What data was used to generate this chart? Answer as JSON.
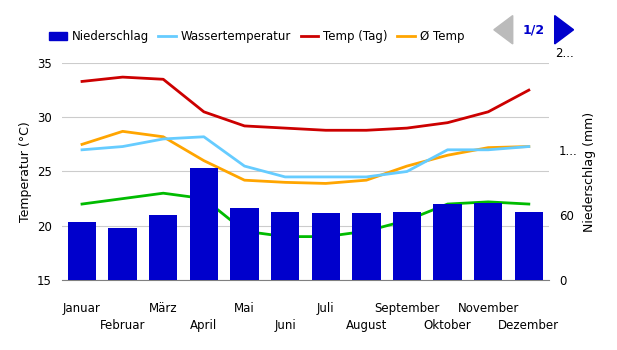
{
  "months_odd": [
    "Januar",
    "März",
    "Mai",
    "Juli",
    "September",
    "November"
  ],
  "months_even": [
    "Februar",
    "April",
    "Juni",
    "August",
    "Oktober",
    "Dezember"
  ],
  "odd_positions": [
    0,
    2,
    4,
    6,
    8,
    10
  ],
  "even_positions": [
    1,
    3,
    5,
    7,
    9,
    11
  ],
  "precipitation_mm": [
    53,
    48,
    60,
    103,
    66,
    63,
    62,
    62,
    63,
    70,
    71,
    63
  ],
  "temp_day": [
    33.3,
    33.7,
    33.5,
    30.5,
    29.2,
    29.0,
    28.8,
    28.8,
    29.0,
    29.5,
    30.5,
    32.5
  ],
  "temp_avg": [
    27.5,
    28.7,
    28.2,
    26.0,
    24.2,
    24.0,
    23.9,
    24.2,
    25.5,
    26.5,
    27.2,
    27.3
  ],
  "water_temp": [
    27.0,
    27.3,
    28.0,
    28.2,
    25.5,
    24.5,
    24.5,
    24.5,
    25.0,
    27.0,
    27.0,
    27.3
  ],
  "min_temp_line": [
    22.0,
    22.5,
    23.0,
    22.5,
    19.5,
    19.0,
    19.0,
    19.5,
    20.5,
    22.0,
    22.2,
    22.0
  ],
  "temp_ylim": [
    15,
    35
  ],
  "precip_ylim": [
    0,
    200
  ],
  "precip_yticks": [
    0,
    60,
    120
  ],
  "precip_yticklabels": [
    "0",
    "60",
    "1..."
  ],
  "temp_yticks": [
    15,
    20,
    25,
    30,
    35
  ],
  "temp_yticklabels": [
    "15",
    "20",
    "25",
    "30",
    "35"
  ],
  "bar_color": "#0000CC",
  "temp_day_color": "#CC0000",
  "temp_avg_color": "#FFA500",
  "water_temp_color": "#66CCFF",
  "min_temp_color": "#00BB00",
  "ylabel_left": "Temperatur (°C)",
  "ylabel_right": "Niederschlag (mm)",
  "legend_items": [
    "Niederschlag",
    "Wassertemperatur",
    "Temp (Tag)",
    "Ø Temp"
  ],
  "bg_color": "#FFFFFF",
  "grid_color": "#CCCCCC"
}
